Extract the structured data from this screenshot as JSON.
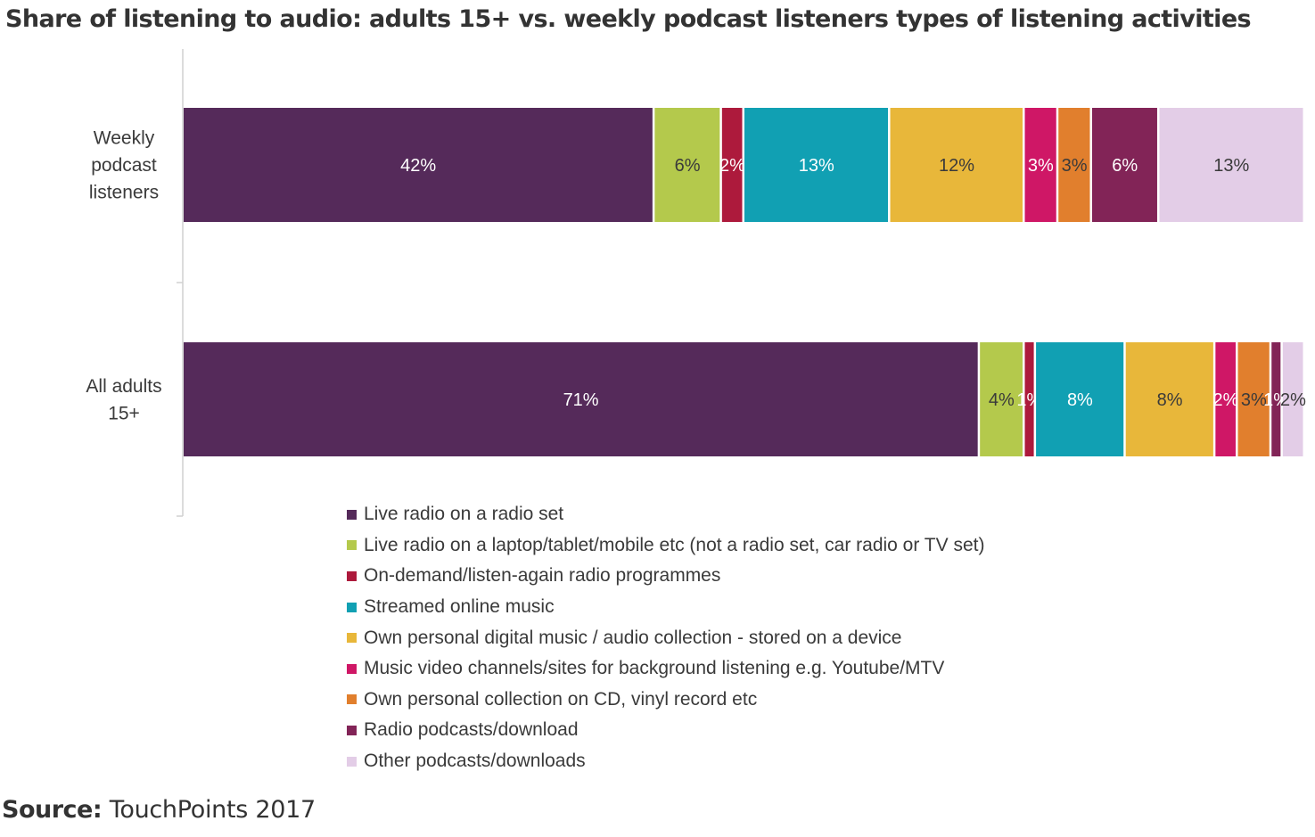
{
  "chart_data": {
    "type": "bar",
    "orientation": "horizontal",
    "stacked": true,
    "title": "Share of listening to audio: adults 15+ vs. weekly podcast listeners types of listening activities",
    "xlabel": "",
    "ylabel": "",
    "xlim": [
      0,
      100
    ],
    "categories": [
      "Weekly podcast listeners",
      "All adults 15+"
    ],
    "category_lines": [
      [
        "Weekly",
        "podcast",
        "listeners"
      ],
      [
        "All adults",
        "15+"
      ]
    ],
    "series": [
      {
        "name": "Live radio on a radio set",
        "color": "#552a5a",
        "label_color": "#ffffff",
        "values": [
          42,
          71
        ],
        "labels": [
          "42%",
          "71%"
        ]
      },
      {
        "name": "Live radio on a laptop/tablet/mobile etc (not a radio set, car radio or TV set)",
        "color": "#b4c94c",
        "label_color": "#3a3a3a",
        "values": [
          6,
          4
        ],
        "labels": [
          "6%",
          "4%"
        ]
      },
      {
        "name": "On-demand/listen-again radio programmes",
        "color": "#ad1a3c",
        "label_color": "#ffffff",
        "values": [
          2,
          1
        ],
        "labels": [
          "2%",
          "1%"
        ]
      },
      {
        "name": "Streamed online music",
        "color": "#11a0b3",
        "label_color": "#ffffff",
        "values": [
          13,
          8
        ],
        "labels": [
          "13%",
          "8%"
        ]
      },
      {
        "name": "Own personal digital music / audio collection - stored on a device",
        "color": "#e8b73a",
        "label_color": "#3a3a3a",
        "values": [
          12,
          8
        ],
        "labels": [
          "12%",
          "8%"
        ]
      },
      {
        "name": "Music video channels/sites for background listening e.g. Youtube/MTV",
        "color": "#cf1766",
        "label_color": "#ffffff",
        "values": [
          3,
          2
        ],
        "labels": [
          "3%",
          "2%"
        ]
      },
      {
        "name": "Own personal collection on CD, vinyl record etc",
        "color": "#e17f2d",
        "label_color": "#3a3a3a",
        "values": [
          3,
          3
        ],
        "labels": [
          "3%",
          "3%"
        ]
      },
      {
        "name": "Radio podcasts/download",
        "color": "#822457",
        "label_color": "#ffffff",
        "values": [
          6,
          1
        ],
        "labels": [
          "6%",
          "1%"
        ]
      },
      {
        "name": "Other podcasts/downloads",
        "color": "#e3cde7",
        "label_color": "#3a3a3a",
        "values": [
          13,
          2
        ],
        "labels": [
          "13%",
          "2%"
        ]
      }
    ],
    "legend_position": "bottom",
    "grid": false
  },
  "source": {
    "label": "Source:",
    "text": "TouchPoints 2017"
  }
}
